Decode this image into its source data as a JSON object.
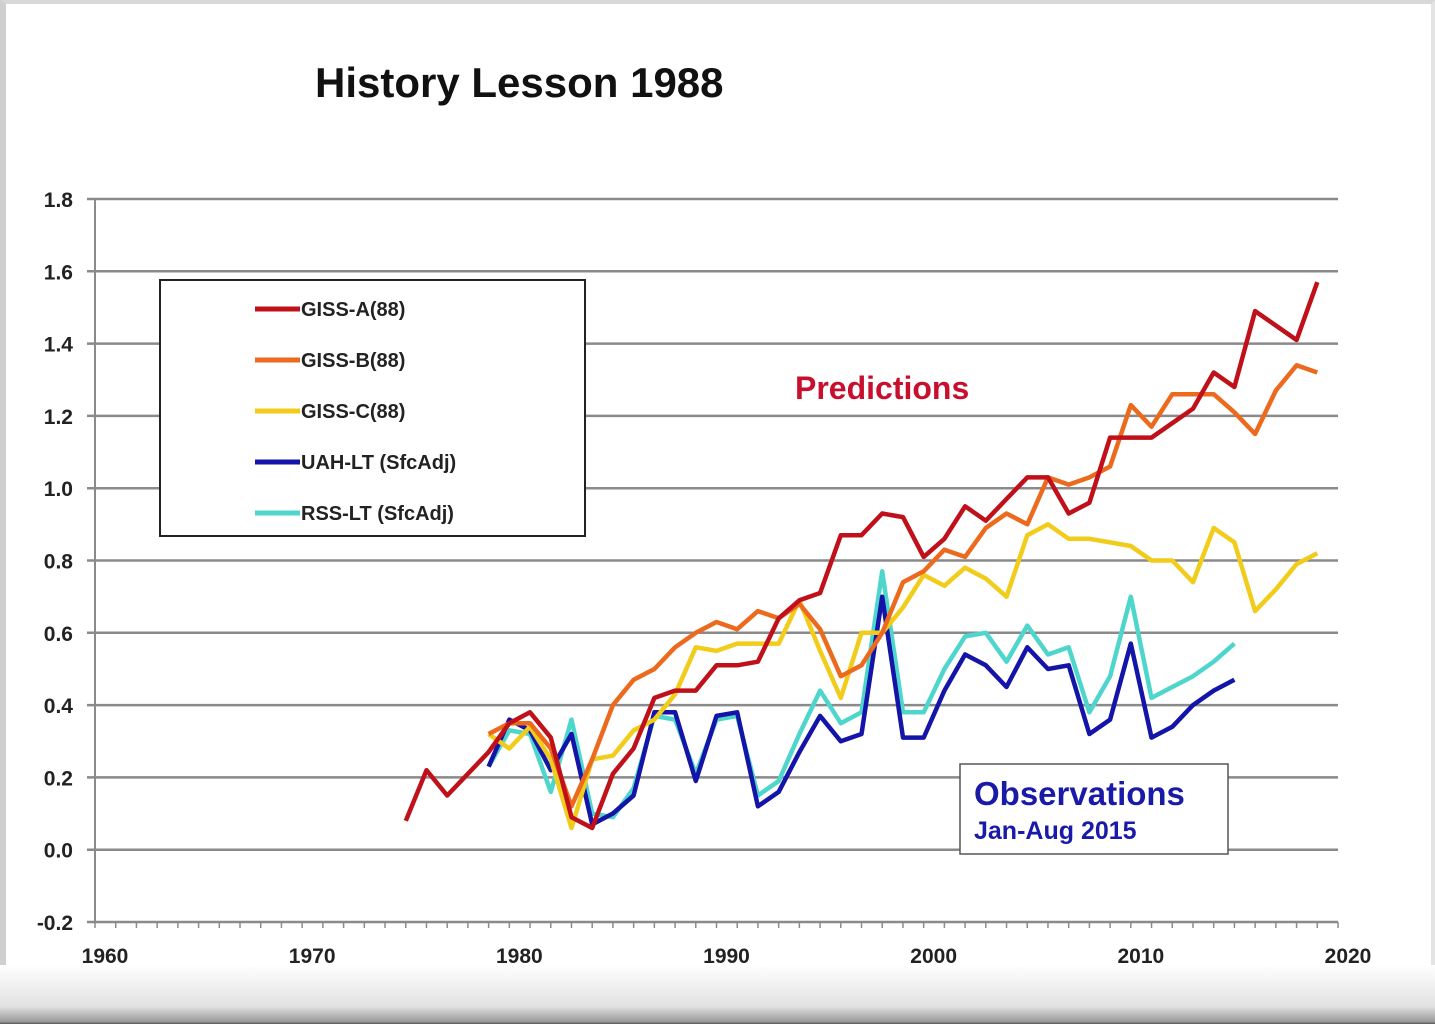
{
  "chart_data": {
    "type": "line",
    "title": "History Lesson 1988",
    "xlabel": "",
    "ylabel": "",
    "xlim": [
      1960,
      2020
    ],
    "ylim": [
      -0.2,
      1.8
    ],
    "x_ticks": [
      "1960",
      "1970",
      "1980",
      "1990",
      "2000",
      "2010",
      "2020"
    ],
    "y_ticks": [
      "1.8",
      "1.6",
      "1.4",
      "1.2",
      "1.0",
      "0.8",
      "0.6",
      "0.4",
      "0.2",
      "0.0",
      "-0.2"
    ],
    "grid": "horizontal",
    "legend_position": "top-left",
    "annotations": {
      "predictions": "Predictions",
      "observations": "Observations",
      "observations_sub": "Jan-Aug 2015"
    },
    "series": [
      {
        "name": "GISS-A(88)",
        "color": "#c0101a",
        "x_start": 1975,
        "values": [
          0.08,
          0.22,
          0.15,
          0.21,
          0.27,
          0.35,
          0.38,
          0.31,
          0.09,
          0.06,
          0.21,
          0.28,
          0.42,
          0.44,
          0.44,
          0.51,
          0.51,
          0.52,
          0.64,
          0.69,
          0.71,
          0.87,
          0.87,
          0.93,
          0.92,
          0.81,
          0.86,
          0.95,
          0.91,
          0.97,
          1.03,
          1.03,
          0.93,
          0.96,
          1.14,
          1.14,
          1.14,
          1.18,
          1.22,
          1.32,
          1.28,
          1.49,
          1.45,
          1.41,
          1.57
        ]
      },
      {
        "name": "GISS-B(88)",
        "color": "#ec6a1e",
        "x_start": 1979,
        "values": [
          0.32,
          0.35,
          0.35,
          0.28,
          0.12,
          0.25,
          0.4,
          0.47,
          0.5,
          0.56,
          0.6,
          0.63,
          0.61,
          0.66,
          0.64,
          0.68,
          0.61,
          0.48,
          0.51,
          0.6,
          0.74,
          0.77,
          0.83,
          0.81,
          0.89,
          0.93,
          0.9,
          1.03,
          1.01,
          1.03,
          1.06,
          1.23,
          1.17,
          1.26,
          1.26,
          1.26,
          1.21,
          1.15,
          1.27,
          1.34,
          1.32
        ]
      },
      {
        "name": "GISS-C(88)",
        "color": "#f2cc1a",
        "x_start": 1979,
        "values": [
          0.32,
          0.28,
          0.34,
          0.25,
          0.06,
          0.25,
          0.26,
          0.33,
          0.36,
          0.43,
          0.56,
          0.55,
          0.57,
          0.57,
          0.57,
          0.69,
          0.55,
          0.42,
          0.6,
          0.6,
          0.67,
          0.76,
          0.73,
          0.78,
          0.75,
          0.7,
          0.87,
          0.9,
          0.86,
          0.86,
          0.85,
          0.84,
          0.8,
          0.8,
          0.74,
          0.89,
          0.85,
          0.66,
          0.72,
          0.79,
          0.82
        ]
      },
      {
        "name": "UAH-LT (SfcAdj)",
        "color": "#1414a8",
        "x_start": 1979,
        "values": [
          0.23,
          0.36,
          0.33,
          0.22,
          0.32,
          0.07,
          0.1,
          0.15,
          0.38,
          0.38,
          0.19,
          0.37,
          0.38,
          0.12,
          0.16,
          0.27,
          0.37,
          0.3,
          0.32,
          0.7,
          0.31,
          0.31,
          0.44,
          0.54,
          0.51,
          0.45,
          0.56,
          0.5,
          0.51,
          0.32,
          0.36,
          0.57,
          0.31,
          0.34,
          0.4,
          0.44,
          0.47
        ]
      },
      {
        "name": "RSS-LT (SfcAdj)",
        "color": "#4fd6cc",
        "x_start": 1979,
        "values": [
          0.23,
          0.33,
          0.32,
          0.16,
          0.36,
          0.1,
          0.09,
          0.17,
          0.37,
          0.36,
          0.21,
          0.36,
          0.37,
          0.15,
          0.19,
          0.32,
          0.44,
          0.35,
          0.38,
          0.77,
          0.38,
          0.38,
          0.5,
          0.59,
          0.6,
          0.52,
          0.62,
          0.54,
          0.56,
          0.38,
          0.48,
          0.7,
          0.42,
          0.45,
          0.48,
          0.52,
          0.57
        ]
      }
    ],
    "colors": {
      "predictions_text": "#c8102e",
      "observations_text": "#1a1aa8"
    }
  }
}
